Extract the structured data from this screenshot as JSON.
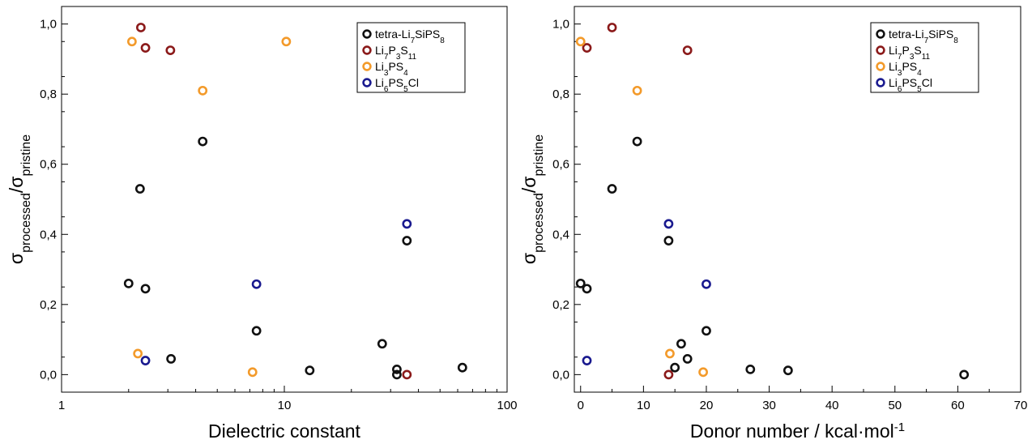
{
  "colors": {
    "tetra-Li7SiPS8": "#111111",
    "Li7P3S11": "#8b1a1a",
    "Li3PS4": "#f39a2a",
    "Li6PS5Cl": "#1a1a8f"
  },
  "legend_entries": [
    {
      "key": "tetra-Li7SiPS8",
      "parts": [
        [
          "tetra-Li",
          ""
        ],
        [
          "7",
          "sub"
        ],
        [
          "SiPS",
          ""
        ],
        [
          "8",
          "sub"
        ]
      ]
    },
    {
      "key": "Li7P3S11",
      "parts": [
        [
          "Li",
          ""
        ],
        [
          "7",
          "sub"
        ],
        [
          "P",
          ""
        ],
        [
          "3",
          "sub"
        ],
        [
          "S",
          ""
        ],
        [
          "11",
          "sub"
        ]
      ]
    },
    {
      "key": "Li3PS4",
      "parts": [
        [
          "Li",
          ""
        ],
        [
          "3",
          "sub"
        ],
        [
          "PS",
          ""
        ],
        [
          "4",
          "sub"
        ]
      ]
    },
    {
      "key": "Li6PS5Cl",
      "parts": [
        [
          "Li",
          ""
        ],
        [
          "6",
          "sub"
        ],
        [
          "PS",
          ""
        ],
        [
          "5",
          "sub"
        ],
        [
          "Cl",
          ""
        ]
      ]
    }
  ],
  "y_title_parts": [
    [
      "σ",
      ""
    ],
    [
      "processed",
      "sub"
    ],
    [
      "/σ",
      ""
    ],
    [
      "pristine",
      "sub"
    ]
  ],
  "chart_data": [
    {
      "type": "scatter",
      "xlabel": "Dielectric constant",
      "ylabel": "σprocessed/σpristine",
      "xscale": "log",
      "xlim": [
        1,
        100
      ],
      "ylim": [
        -0.05,
        1.05
      ],
      "x_ticks": [
        1,
        10,
        100
      ],
      "x_tick_labels": [
        "1",
        "10",
        "100"
      ],
      "y_ticks": [
        0,
        0.2,
        0.4,
        0.6,
        0.8,
        1.0
      ],
      "y_tick_labels": [
        "0,0",
        "0,2",
        "0,4",
        "0,6",
        "0,8",
        "1,0"
      ],
      "legend": "top-right",
      "series": [
        {
          "name": "tetra-Li7SiPS8",
          "x": [
            2.0,
            2.25,
            2.38,
            3.1,
            4.3,
            7.5,
            13.0,
            27.5,
            32.0,
            32.0,
            35.5,
            63.0
          ],
          "y": [
            0.26,
            0.53,
            0.245,
            0.045,
            0.665,
            0.125,
            0.012,
            0.088,
            0.0,
            0.015,
            0.382,
            0.02
          ]
        },
        {
          "name": "Li7P3S11",
          "x": [
            2.27,
            2.38,
            3.08,
            35.5
          ],
          "y": [
            0.99,
            0.932,
            0.925,
            0.0
          ]
        },
        {
          "name": "Li3PS4",
          "x": [
            2.07,
            2.2,
            4.3,
            7.2,
            10.2
          ],
          "y": [
            0.95,
            0.06,
            0.81,
            0.007,
            0.95
          ]
        },
        {
          "name": "Li6PS5Cl",
          "x": [
            2.38,
            7.5,
            35.5
          ],
          "y": [
            0.04,
            0.258,
            0.43
          ]
        }
      ]
    },
    {
      "type": "scatter",
      "xlabel": "Donor number / kcal·mol-1",
      "ylabel": "σprocessed/σpristine",
      "xscale": "linear",
      "xlim": [
        -1,
        70
      ],
      "ylim": [
        -0.05,
        1.05
      ],
      "x_ticks": [
        0,
        10,
        20,
        30,
        40,
        50,
        60,
        70
      ],
      "x_tick_labels": [
        "0",
        "10",
        "20",
        "30",
        "40",
        "50",
        "60",
        "70"
      ],
      "y_ticks": [
        0,
        0.2,
        0.4,
        0.6,
        0.8,
        1.0
      ],
      "y_tick_labels": [
        "0,0",
        "0,2",
        "0,4",
        "0,6",
        "0,8",
        "1,0"
      ],
      "legend": "top-right",
      "series": [
        {
          "name": "tetra-Li7SiPS8",
          "x": [
            0.0,
            1.0,
            5.0,
            9.0,
            14.0,
            15.0,
            16.0,
            17.0,
            20.0,
            27.0,
            33.0,
            61.0
          ],
          "y": [
            0.26,
            0.245,
            0.53,
            0.665,
            0.382,
            0.02,
            0.088,
            0.045,
            0.125,
            0.015,
            0.012,
            0.0
          ]
        },
        {
          "name": "Li7P3S11",
          "x": [
            1.0,
            5.0,
            14.0,
            17.0
          ],
          "y": [
            0.932,
            0.99,
            0.0,
            0.925
          ]
        },
        {
          "name": "Li3PS4",
          "x": [
            0.0,
            9.0,
            14.2,
            19.5
          ],
          "y": [
            0.95,
            0.81,
            0.06,
            0.007
          ]
        },
        {
          "name": "Li6PS5Cl",
          "x": [
            1.0,
            14.0,
            20.0
          ],
          "y": [
            0.04,
            0.43,
            0.258
          ]
        }
      ]
    }
  ]
}
